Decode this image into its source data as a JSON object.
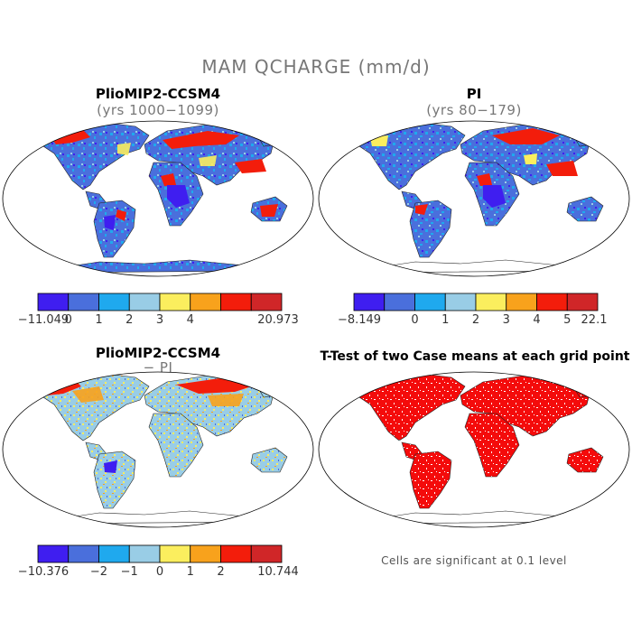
{
  "main_title": "MAM QCHARGE (mm/d)",
  "panels": [
    {
      "id": "top-left",
      "title": "PlioMIP2-CCSM4",
      "subtitle": "(yrs 1000−1099)"
    },
    {
      "id": "top-right",
      "title": "PI",
      "subtitle": "(yrs 80−179)"
    },
    {
      "id": "bottom-left",
      "title": "PlioMIP2-CCSM4",
      "subtitle": "− PI"
    },
    {
      "id": "bottom-right",
      "title": "T-Test of two Case means at each grid point",
      "subtitle": ""
    }
  ],
  "colorbars": [
    {
      "id": "cb-top-left",
      "colors": [
        "#3f1ef0",
        "#4a6fdc",
        "#1fa9ee",
        "#99cde6",
        "#fbee5e",
        "#f8a21c",
        "#f31d0b",
        "#d02628"
      ],
      "labels": [
        "−11.049",
        "0",
        "1",
        "2",
        "3",
        "4",
        "20.973"
      ]
    },
    {
      "id": "cb-top-right",
      "colors": [
        "#3f1ef0",
        "#4a6fdc",
        "#1fa9ee",
        "#99cde6",
        "#fbee5e",
        "#f8a21c",
        "#f31d0b",
        "#d02628"
      ],
      "labels": [
        "−8.149",
        "0",
        "1",
        "2",
        "3",
        "4",
        "5",
        "22.1"
      ]
    },
    {
      "id": "cb-bottom-left",
      "colors": [
        "#3f1ef0",
        "#4a6fdc",
        "#1fa9ee",
        "#99cde6",
        "#fbee5e",
        "#f8a21c",
        "#f31d0b",
        "#d02628"
      ],
      "labels": [
        "−10.376",
        "−2",
        "−1",
        "0",
        "1",
        "2",
        "10.744"
      ]
    }
  ],
  "significance_note": "Cells are significant at 0.1 level",
  "colors": {
    "significant": "#f40b0b",
    "land_outline": "#222222",
    "frame": "#000000"
  }
}
